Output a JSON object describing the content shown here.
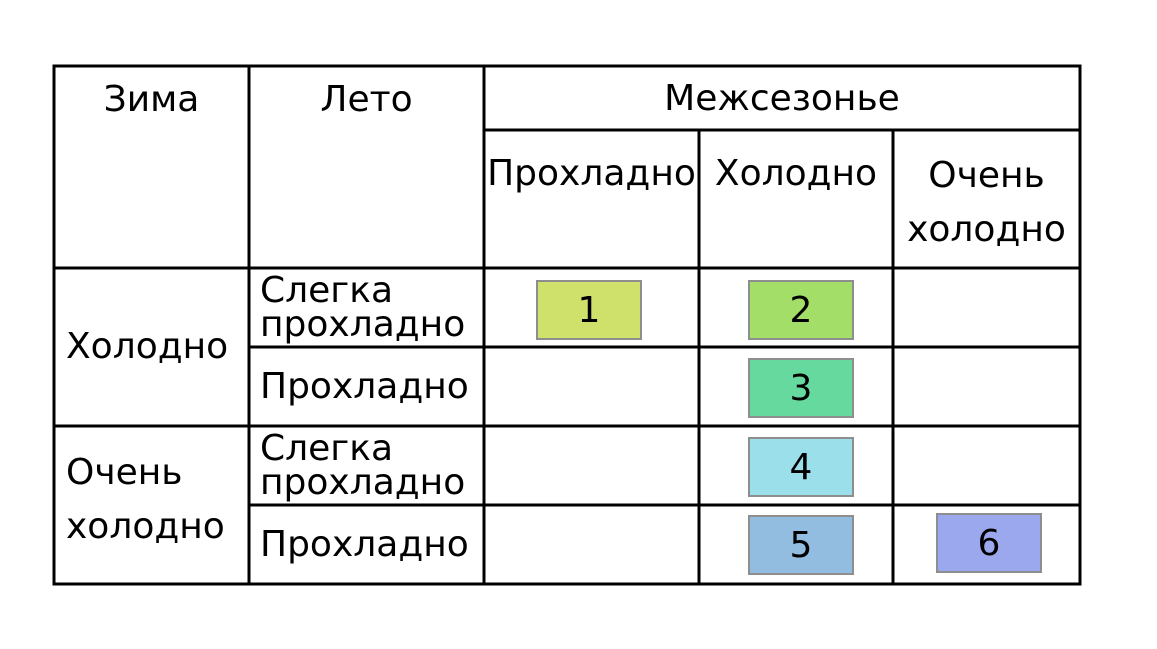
{
  "table": {
    "headers": {
      "winter": "Зима",
      "summer": "Лето",
      "offseason": "Межсезонье",
      "offseason_sub": [
        "Прохладно",
        "Холодно",
        "Очень\nхолодно"
      ]
    },
    "winter_rows": [
      {
        "label": "Холодно",
        "summer": [
          "Слегка\nпрохладно",
          "Прохладно"
        ]
      },
      {
        "label": "Очень\nхолодно",
        "summer": [
          "Слегка\nпрохладно",
          "Прохладно"
        ]
      }
    ]
  },
  "boxes": [
    {
      "label": "1",
      "color": "#cfe06b"
    },
    {
      "label": "2",
      "color": "#a3df68"
    },
    {
      "label": "3",
      "color": "#66d99f"
    },
    {
      "label": "4",
      "color": "#9adfe9"
    },
    {
      "label": "5",
      "color": "#93bde0"
    },
    {
      "label": "6",
      "color": "#9ba8ee"
    }
  ]
}
